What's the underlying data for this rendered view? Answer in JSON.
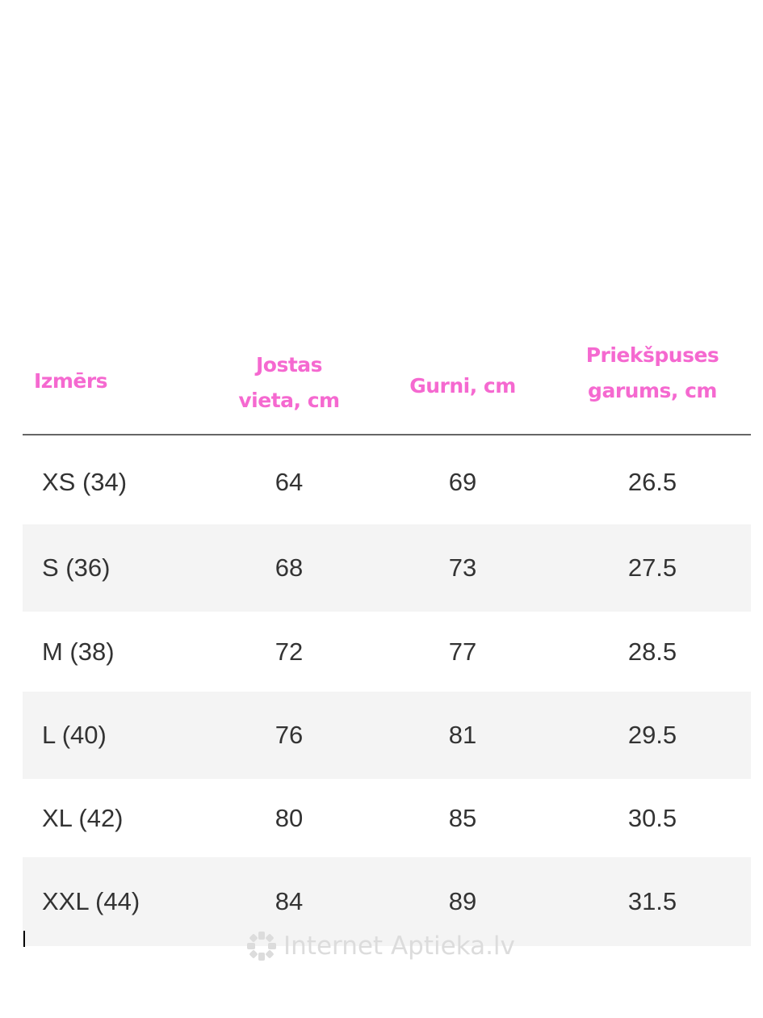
{
  "headers": {
    "size": "Izmērs",
    "waist": [
      "Josta s",
      "vieta, cm"
    ],
    "hips": "Gurni, cm",
    "front_length": [
      "Priekšpuses",
      "garums, cm"
    ]
  },
  "rows": [
    {
      "size": "XS (34)",
      "waist": "64",
      "hips": "69",
      "front_length": "26.5"
    },
    {
      "size": "S (36)",
      "waist": "68",
      "hips": "73",
      "front_length": "27.5"
    },
    {
      "size": "M (38)",
      "waist": "72",
      "hips": "77",
      "front_length": "28.5"
    },
    {
      "size": "L (40)",
      "waist": "76",
      "hips": "81",
      "front_length": "29.5"
    },
    {
      "size": "XL (42)",
      "waist": "80",
      "hips": "85",
      "front_length": "30.5"
    },
    {
      "size": "XXL (44)",
      "waist": "84",
      "hips": "89",
      "front_length": "31.5"
    }
  ],
  "watermark": "Internet Aptieka.lv",
  "colors": {
    "header": "#f569d0",
    "text": "#333333",
    "stripe": "#f4f4f4",
    "watermark": "#dcdcdc"
  }
}
